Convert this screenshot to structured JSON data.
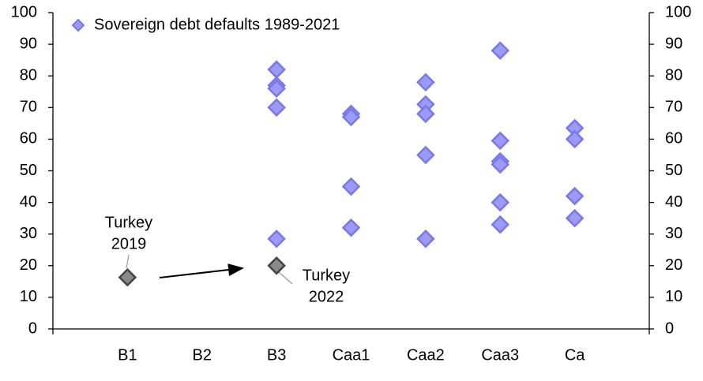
{
  "chart_data": {
    "type": "scatter",
    "categories": [
      "B1",
      "B2",
      "B3",
      "Caa1",
      "Caa2",
      "Caa3",
      "Ca"
    ],
    "ylim": [
      0,
      100
    ],
    "yticks": [
      0,
      10,
      20,
      30,
      40,
      50,
      60,
      70,
      80,
      90,
      100
    ],
    "y2lim": [
      0,
      100
    ],
    "y2ticks": [
      0,
      10,
      20,
      30,
      40,
      50,
      60,
      70,
      80,
      90,
      100
    ],
    "legend": "top-left",
    "series": [
      {
        "name": "Sovereign debt defaults 1989-2021",
        "color": "#9b9bf5",
        "edge": "#7777ee",
        "x": [
          "B3",
          "B3",
          "B3",
          "B3",
          "B3",
          "Caa1",
          "Caa1",
          "Caa1",
          "Caa1",
          "Caa2",
          "Caa2",
          "Caa2",
          "Caa2",
          "Caa2",
          "Caa3",
          "Caa3",
          "Caa3",
          "Caa3",
          "Caa3",
          "Caa3",
          "Ca",
          "Ca",
          "Ca",
          "Ca"
        ],
        "values": [
          82,
          77,
          76,
          70,
          28.5,
          68,
          67,
          45,
          32,
          78,
          71,
          68,
          55,
          28.5,
          88,
          59.5,
          53,
          52,
          40,
          33,
          63.5,
          60,
          42,
          35
        ]
      },
      {
        "color": "#8a8a8a",
        "edge": "#444444",
        "x": [
          "B1",
          "B3"
        ],
        "values": [
          16.3,
          20
        ]
      }
    ],
    "annotations": [
      {
        "lines": [
          "Turkey",
          "2019"
        ]
      },
      {
        "lines": [
          "Turkey",
          "2022"
        ]
      }
    ]
  }
}
